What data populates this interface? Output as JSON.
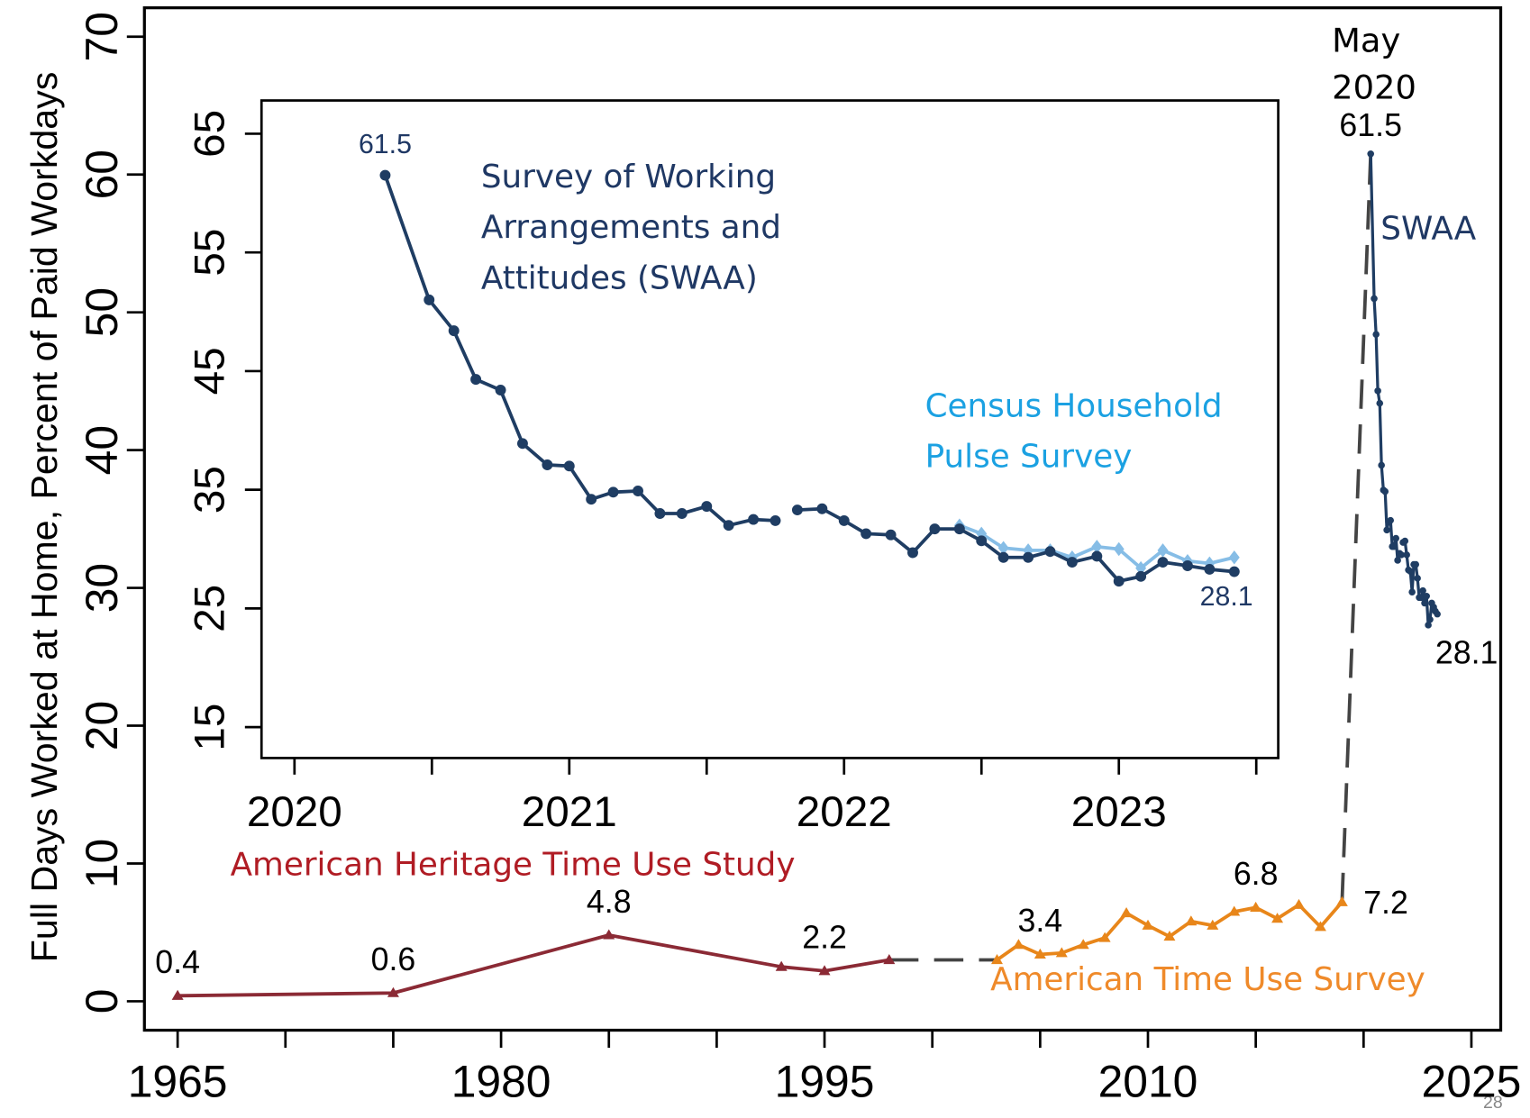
{
  "page_number": "28",
  "chart_data": [
    {
      "type": "line",
      "y_label": "Full Days Worked at Home, Percent of Paid Workdays",
      "xlim": [
        1963.46,
        2026.36
      ],
      "xticks": [
        1965,
        1980,
        1995,
        2010,
        2025
      ],
      "xminorticks": [
        1970,
        1975,
        1985,
        1990,
        2000,
        2005,
        2015,
        2020
      ],
      "ylim": [
        -2.1,
        72.1
      ],
      "yticks": [
        0,
        10,
        20,
        30,
        40,
        50,
        60,
        70
      ],
      "annotations": [
        "May 2020",
        "SWAA"
      ],
      "series": [
        {
          "name": "American Heritage Time Use Study",
          "color": "#8b2a35",
          "marker": "triangle",
          "x": [
            1965,
            1975,
            1985,
            1993,
            1995,
            1998
          ],
          "values": [
            0.4,
            0.6,
            4.8,
            2.5,
            2.2,
            3.0
          ],
          "value_labels": [
            "0.4",
            "0.6",
            "4.8",
            null,
            "2.2",
            null
          ]
        },
        {
          "name": "American Time Use Survey",
          "color": "#e8861a",
          "marker": "triangle",
          "x": [
            2003,
            2004,
            2005,
            2006,
            2007,
            2008,
            2009,
            2010,
            2011,
            2012,
            2013,
            2014,
            2015,
            2016,
            2017,
            2018,
            2019
          ],
          "values": [
            3.0,
            4.1,
            3.4,
            3.5,
            4.1,
            4.6,
            6.4,
            5.5,
            4.7,
            5.8,
            5.5,
            6.5,
            6.8,
            6.0,
            7.0,
            5.4,
            7.2
          ],
          "value_labels": [
            null,
            null,
            "3.4",
            null,
            null,
            null,
            null,
            null,
            null,
            null,
            null,
            null,
            "6.8",
            null,
            null,
            null,
            "7.2"
          ]
        }
      ]
    },
    {
      "type": "line",
      "xlim": [
        2019.88,
        2023.58
      ],
      "xticks": [
        2020,
        2021,
        2022,
        2023
      ],
      "xminorticks": [
        2020.5,
        2021.5,
        2022.5,
        2023.5
      ],
      "ylim": [
        12.4,
        67.8
      ],
      "yticks": [
        15,
        25,
        35,
        45,
        55,
        65
      ],
      "series": [
        {
          "name": "Survey of Working Arrangements and Attitudes (SWAA)",
          "color": "#1f3d63",
          "marker": "circle",
          "x": [
            2020.33,
            2020.49,
            2020.58,
            2020.66,
            2020.75,
            2020.83,
            2020.92,
            2021.0,
            2021.08,
            2021.16,
            2021.25,
            2021.33,
            2021.41,
            2021.5,
            2021.58,
            2021.67,
            2021.75,
            2021.79,
            2021.83,
            2021.92,
            2022.0,
            2022.08,
            2022.17,
            2022.25,
            2022.33,
            2022.42,
            2022.5,
            2022.58,
            2022.67,
            2022.75,
            2022.83,
            2022.92,
            2023.0,
            2023.08,
            2023.16,
            2023.25,
            2023.33,
            2023.42
          ],
          "values": [
            61.5,
            51.0,
            48.4,
            44.3,
            43.4,
            38.9,
            37.1,
            37.0,
            34.2,
            34.8,
            34.9,
            33.0,
            33.0,
            33.6,
            32.0,
            32.5,
            32.4,
            null,
            33.3,
            33.4,
            32.4,
            31.3,
            31.2,
            29.7,
            31.7,
            31.7,
            30.7,
            29.3,
            29.3,
            29.8,
            28.9,
            29.4,
            27.3,
            27.7,
            28.9,
            28.6,
            28.3,
            28.1
          ],
          "value_labels": [
            "61.5",
            null,
            null,
            null,
            null,
            null,
            null,
            null,
            null,
            null,
            null,
            null,
            null,
            null,
            null,
            null,
            null,
            null,
            null,
            null,
            null,
            null,
            null,
            null,
            null,
            null,
            null,
            null,
            null,
            null,
            null,
            null,
            null,
            null,
            null,
            null,
            null,
            "28.1"
          ]
        },
        {
          "name": "Census Household Pulse Survey",
          "color": "#86bde6",
          "marker": "diamond",
          "x": [
            2022.42,
            2022.5,
            2022.58,
            2022.67,
            2022.75,
            2022.83,
            2022.92,
            2023.0,
            2023.08,
            2023.16,
            2023.25,
            2023.33,
            2023.42
          ],
          "values": [
            32.0,
            31.3,
            30.1,
            29.9,
            29.9,
            29.3,
            30.2,
            30.0,
            28.4,
            29.9,
            29.0,
            28.8,
            29.3
          ]
        }
      ]
    }
  ]
}
